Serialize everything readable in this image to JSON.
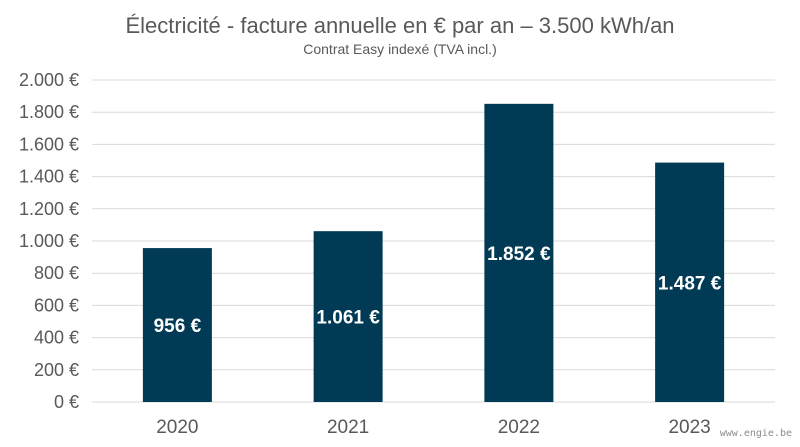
{
  "chart_data": {
    "type": "bar",
    "title": "Électricité - facture annuelle en € par an – 3.500 kWh/an",
    "subtitle": "Contrat Easy indexé (TVA incl.)",
    "categories": [
      "2020",
      "2021",
      "2022",
      "2023"
    ],
    "values": [
      956,
      1061,
      1852,
      1487
    ],
    "data_labels": [
      "956 €",
      "1.061 €",
      "1.852 €",
      "1.487 €"
    ],
    "xlabel": "",
    "ylabel": "",
    "ylim": [
      0,
      2000
    ],
    "yticks": [
      0,
      200,
      400,
      600,
      800,
      1000,
      1200,
      1400,
      1600,
      1800,
      2000
    ],
    "ytick_labels": [
      "0 €",
      "200 €",
      "400 €",
      "600 €",
      "800 €",
      "1.000 €",
      "1.200 €",
      "1.400 €",
      "1.600 €",
      "1.800 €",
      "2.000 €"
    ],
    "grid": true,
    "legend": "none",
    "bar_color": "#003A54",
    "grid_color": "#D9D9D9"
  },
  "watermark": "www.engie.be"
}
